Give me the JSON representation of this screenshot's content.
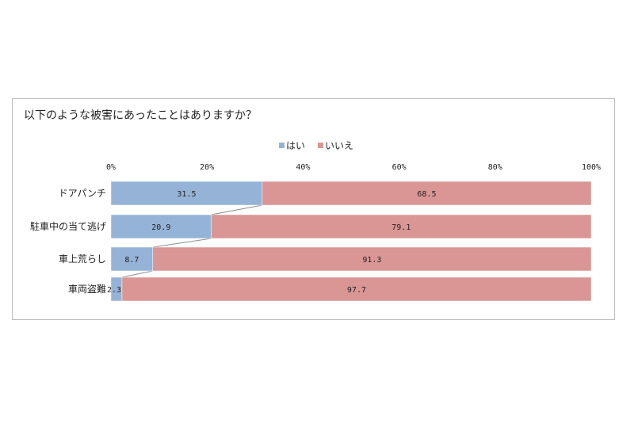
{
  "chart_data": {
    "type": "bar",
    "orientation": "horizontal",
    "stacked": true,
    "title": "以下のような被害にあったことはありますか？",
    "categories": [
      "ドアパンチ",
      "駐車中の当て逃げ",
      "車上荒らし",
      "車両盗難"
    ],
    "series": [
      {
        "name": "はい",
        "values": [
          31.5,
          20.9,
          8.7,
          2.3
        ],
        "color": "#95b3d7"
      },
      {
        "name": "いいえ",
        "values": [
          68.5,
          79.1,
          91.3,
          97.7
        ],
        "color": "#d99694"
      }
    ],
    "xlim": [
      0,
      100
    ],
    "xticks": [
      "0%",
      "20%",
      "40%",
      "60%",
      "80%",
      "100%"
    ],
    "legend_position": "top-center",
    "series_lines": true
  }
}
